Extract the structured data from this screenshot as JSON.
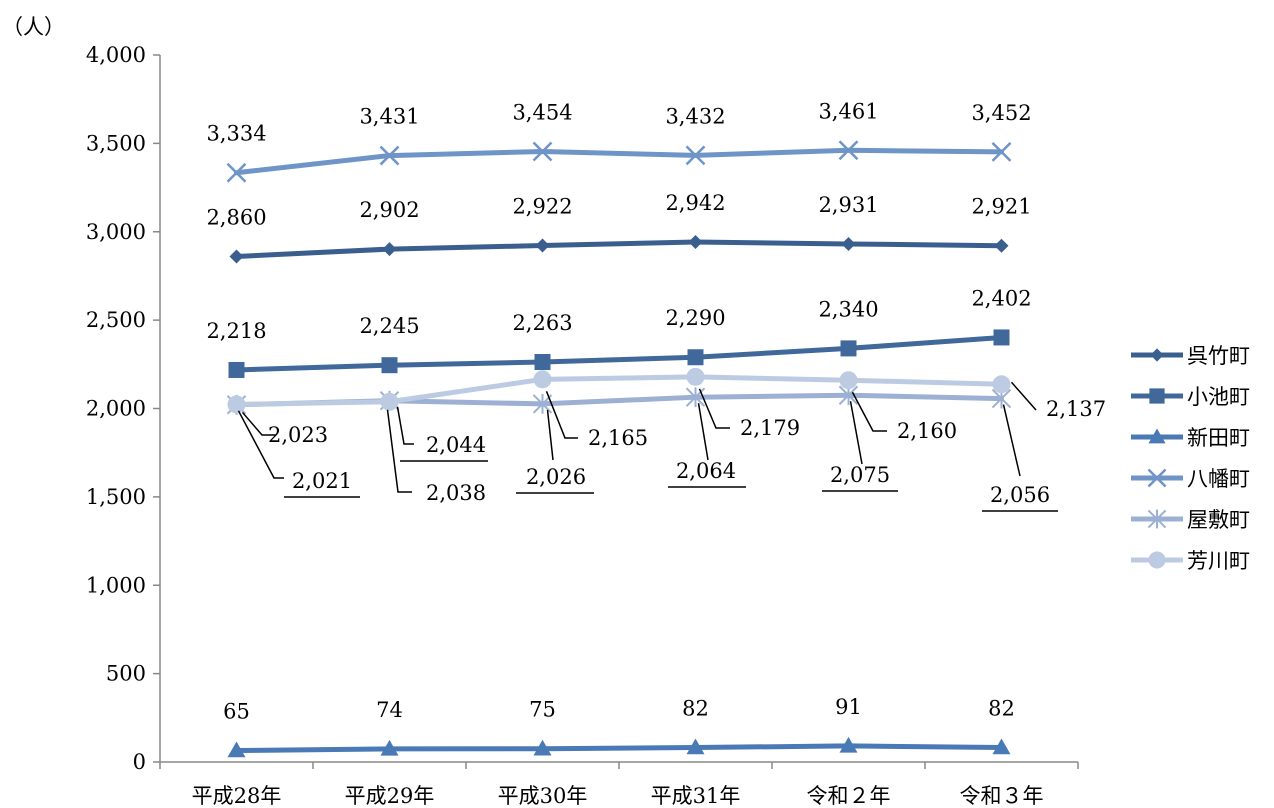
{
  "chart_data": {
    "type": "line",
    "unit_label": "（人）",
    "categories": [
      "平成28年",
      "平成29年",
      "平成30年",
      "平成31年",
      "令和２年",
      "令和３年"
    ],
    "ylim": [
      0,
      4000
    ],
    "yticks": [
      0,
      500,
      1000,
      1500,
      2000,
      2500,
      3000,
      3500,
      4000
    ],
    "ytick_labels": [
      "0",
      "500",
      "1,000",
      "1,500",
      "2,000",
      "2,500",
      "3,000",
      "3,500",
      "4,000"
    ],
    "grid": false,
    "legend_position": "right",
    "series": [
      {
        "name": "呉竹町",
        "marker": "diamond",
        "color": "#3a5f8f",
        "values": [
          2860,
          2902,
          2922,
          2942,
          2931,
          2921
        ],
        "labels": [
          "2,860",
          "2,902",
          "2,922",
          "2,942",
          "2,931",
          "2,921"
        ]
      },
      {
        "name": "小池町",
        "marker": "square",
        "color": "#40689b",
        "values": [
          2218,
          2245,
          2263,
          2290,
          2340,
          2402
        ],
        "labels": [
          "2,218",
          "2,245",
          "2,263",
          "2,290",
          "2,340",
          "2,402"
        ]
      },
      {
        "name": "新田町",
        "marker": "triangle",
        "color": "#4a7ab5",
        "values": [
          65,
          74,
          75,
          82,
          91,
          82
        ],
        "labels": [
          "65",
          "74",
          "75",
          "82",
          "91",
          "82"
        ]
      },
      {
        "name": "八幡町",
        "marker": "x",
        "color": "#6f94c8",
        "values": [
          3334,
          3431,
          3454,
          3432,
          3461,
          3452
        ],
        "labels": [
          "3,334",
          "3,431",
          "3,454",
          "3,432",
          "3,461",
          "3,452"
        ]
      },
      {
        "name": "屋敷町",
        "marker": "star",
        "color": "#9bb0d3",
        "values": [
          2021,
          2044,
          2026,
          2064,
          2075,
          2056
        ],
        "labels": [
          "2,021",
          "2,044",
          "2,026",
          "2,064",
          "2,075",
          "2,056"
        ]
      },
      {
        "name": "芳川町",
        "marker": "circle",
        "color": "#bccbe2",
        "values": [
          2023,
          2038,
          2165,
          2179,
          2160,
          2137
        ],
        "labels": [
          "2,023",
          "2,038",
          "2,165",
          "2,179",
          "2,160",
          "2,137"
        ]
      }
    ]
  }
}
